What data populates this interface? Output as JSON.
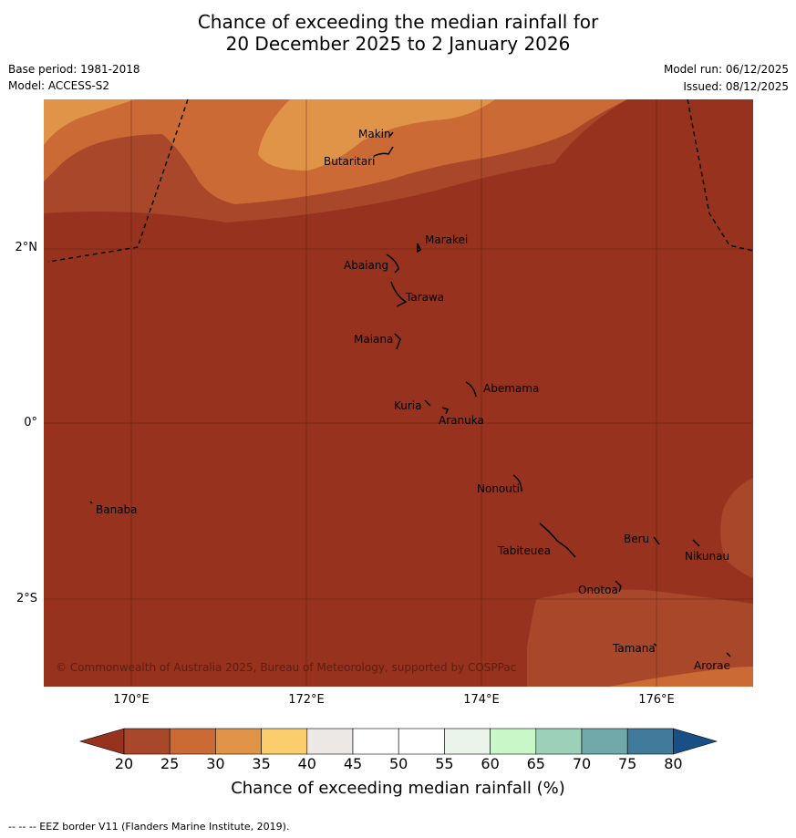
{
  "title": {
    "line1": "Chance of exceeding the median rainfall for",
    "line2": "20 December 2025 to 2 January 2026"
  },
  "meta": {
    "base_period": "Base period: 1981-2018",
    "model": "Model: ACCESS-S2",
    "model_run": "Model run: 06/12/2025",
    "issued": "Issued: 08/12/2025"
  },
  "axes": {
    "longitudes": [
      "170°E",
      "172°E",
      "174°E",
      "176°E"
    ],
    "latitudes": [
      "2°N",
      "0°",
      "2°S"
    ]
  },
  "places": {
    "makin": "Makin",
    "butaritari": "Butaritari",
    "marakei": "Marakei",
    "abaiang": "Abaiang",
    "tarawa": "Tarawa",
    "maiana": "Maiana",
    "abemama": "Abemama",
    "kuria": "Kuria",
    "aranuka": "Aranuka",
    "nonouti": "Nonouti",
    "banaba": "Banaba",
    "beru": "Beru",
    "nikunau": "Nikunau",
    "tabiteuea": "Tabiteuea",
    "onotoa": "Onotoa",
    "tamana": "Tamana",
    "arorae": "Arorae"
  },
  "copyright": "© Commonwealth of Australia 2025, Bureau of Meteorology, supported by COSPPac",
  "colorbar": {
    "ticks": [
      "20",
      "25",
      "30",
      "35",
      "40",
      "45",
      "50",
      "55",
      "60",
      "65",
      "70",
      "75",
      "80"
    ],
    "colors": [
      "#a8472a",
      "#cc6a35",
      "#e09448",
      "#fccd6c",
      "#ebe8e5",
      "#ffffff",
      "#ffffff",
      "#eaf4ea",
      "#c8f8c8",
      "#9dd0b8",
      "#71a9aa",
      "#417b9c"
    ],
    "under_color": "#96321e",
    "over_color": "#174f86",
    "label": "Chance of exceeding median rainfall (%)"
  },
  "map_colors": {
    "lt20": "#96321e",
    "20to25": "#a8472a",
    "25to30": "#cc6a35",
    "30to35": "#e09448"
  },
  "footer": "--  --  -- EEZ border V11 (Flanders Marine Institute, 2019)."
}
